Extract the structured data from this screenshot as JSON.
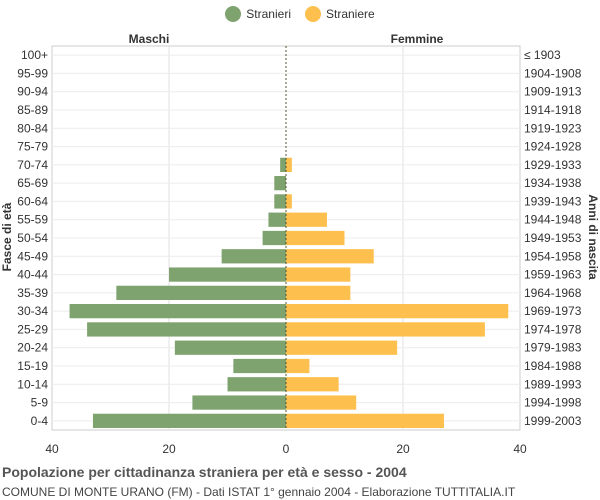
{
  "legend": [
    {
      "label": "Stranieri",
      "color": "#7fa36f"
    },
    {
      "label": "Straniere",
      "color": "#fdc04e"
    }
  ],
  "footer": {
    "title": "Popolazione per cittadinanza straniera per età e sesso - 2004",
    "subtitle": "COMUNE DI MONTE URANO (FM) - Dati ISTAT 1° gennaio 2004 - Elaborazione TUTTITALIA.IT"
  },
  "chart_data": {
    "type": "bar",
    "orientation": "horizontal-pyramid",
    "left_label": "Maschi",
    "right_label": "Femmine",
    "ylabel_left": "Fasce di età",
    "ylabel_right": "Anni di nascita",
    "xlim": [
      -40,
      40
    ],
    "xticks": [
      "40",
      "20",
      "0",
      "20",
      "40"
    ],
    "grid": true,
    "age_groups": [
      "100+",
      "95-99",
      "90-94",
      "85-89",
      "80-84",
      "75-79",
      "70-74",
      "65-69",
      "60-64",
      "55-59",
      "50-54",
      "45-49",
      "40-44",
      "35-39",
      "30-34",
      "25-29",
      "20-24",
      "15-19",
      "10-14",
      "5-9",
      "0-4"
    ],
    "birth_years": [
      "≤ 1903",
      "1904-1908",
      "1909-1913",
      "1914-1918",
      "1919-1923",
      "1924-1928",
      "1929-1933",
      "1934-1938",
      "1939-1943",
      "1944-1948",
      "1949-1953",
      "1954-1958",
      "1959-1963",
      "1964-1968",
      "1969-1973",
      "1974-1978",
      "1979-1983",
      "1984-1988",
      "1989-1993",
      "1994-1998",
      "1999-2003"
    ],
    "series": [
      {
        "name": "Stranieri",
        "color": "#7fa36f",
        "values": [
          0,
          0,
          0,
          0,
          0,
          0,
          1,
          2,
          2,
          3,
          4,
          11,
          20,
          29,
          37,
          34,
          19,
          9,
          10,
          16,
          33
        ]
      },
      {
        "name": "Straniere",
        "color": "#fdc04e",
        "values": [
          0,
          0,
          0,
          0,
          0,
          0,
          1,
          0,
          1,
          7,
          10,
          15,
          11,
          11,
          38,
          34,
          19,
          4,
          9,
          12,
          27
        ]
      }
    ]
  }
}
